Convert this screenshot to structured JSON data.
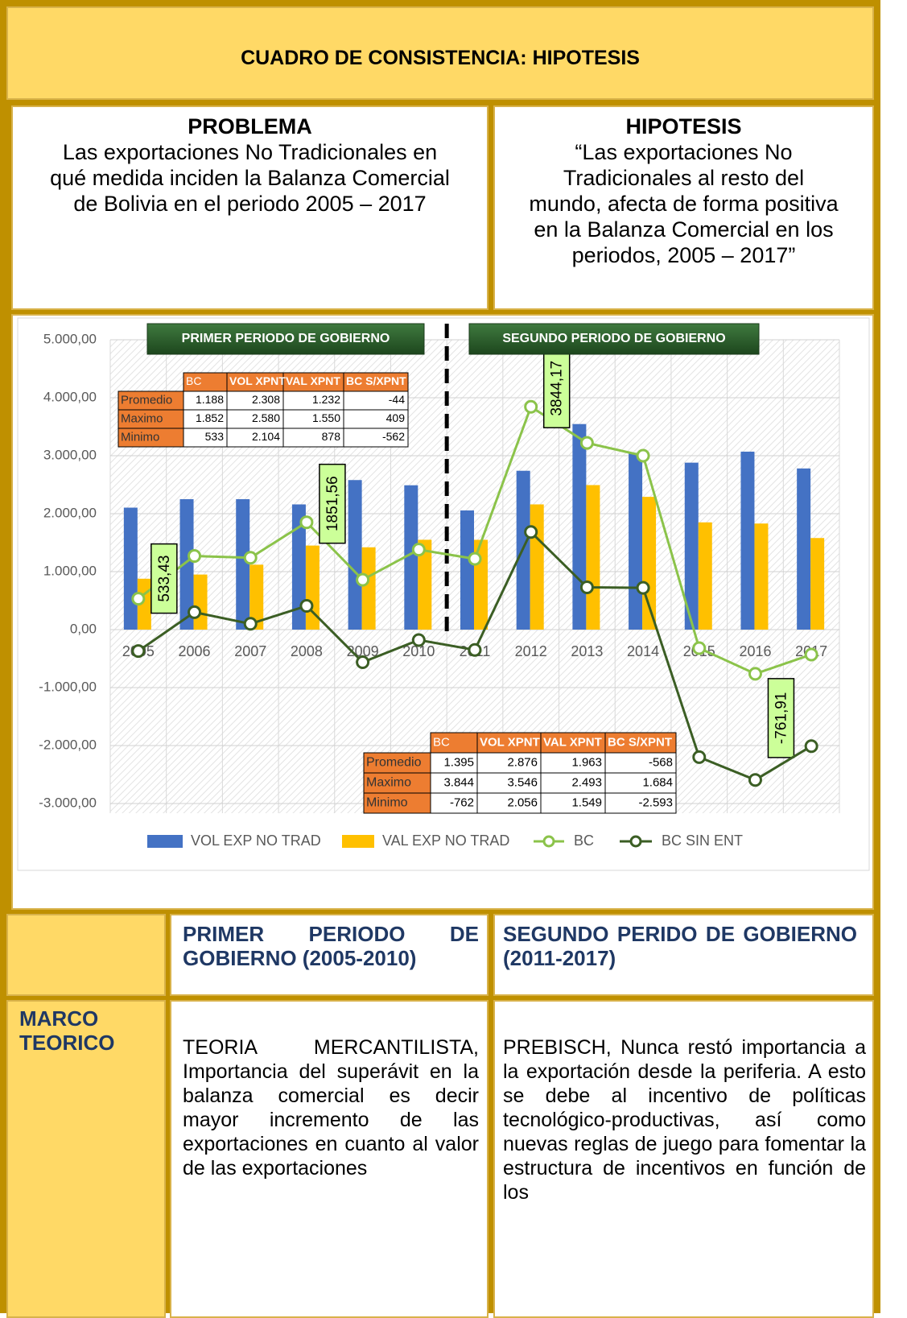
{
  "title": "CUADRO DE CONSISTENCIA: HIPOTESIS",
  "problem": {
    "heading": "PROBLEMA",
    "text": "Las exportaciones No Tradicionales en qué medida inciden la Balanza Comercial de Bolivia en el periodo 2005 – 2017"
  },
  "hypothesis": {
    "heading": "HIPOTESIS",
    "text": "“Las exportaciones No Tradicionales al resto del mundo, afecta de forma positiva en la Balanza Comercial en los periodos, 2005 – 2017”"
  },
  "chart_data": {
    "type": "bar_line",
    "categories": [
      "2005",
      "2006",
      "2007",
      "2008",
      "2009",
      "2010",
      "2011",
      "2012",
      "2013",
      "2014",
      "2015",
      "2016",
      "2017"
    ],
    "series": [
      {
        "name": "VOL EXP NO TRAD",
        "kind": "bar",
        "color": "#4472c4",
        "values": [
          2104,
          2250,
          2250,
          2160,
          2580,
          2490,
          2056,
          2740,
          3546,
          3050,
          2880,
          3070,
          2780
        ]
      },
      {
        "name": "VAL EXP NO TRAD",
        "kind": "bar",
        "color": "#ffc000",
        "values": [
          878,
          950,
          1120,
          1450,
          1420,
          1550,
          1549,
          2160,
          2493,
          2290,
          1850,
          1830,
          1580
        ]
      },
      {
        "name": "BC",
        "kind": "line",
        "color": "#8bc34a",
        "values": [
          533.43,
          1270,
          1240,
          1851.56,
          860,
          1380,
          1220,
          3844.17,
          3220,
          3000,
          -320,
          -761.91,
          -430
        ],
        "value_labels": [
          "533,43",
          null,
          null,
          "1851,56",
          null,
          null,
          null,
          "3844,17",
          null,
          null,
          null,
          "-761,91",
          null
        ]
      },
      {
        "name": "BC SIN ENT",
        "kind": "line",
        "color": "#3b5e24",
        "values": [
          -370,
          300,
          100,
          409,
          -562,
          -180,
          -350,
          1684,
          730,
          720,
          -2200,
          -2593,
          -2010
        ]
      }
    ],
    "ylim": [
      -3000,
      5000
    ],
    "yticks": [
      {
        "value": 5000,
        "label": "5.000,00"
      },
      {
        "value": 4000,
        "label": "4.000,00"
      },
      {
        "value": 3000,
        "label": "3.000,00"
      },
      {
        "value": 2000,
        "label": "2.000,00"
      },
      {
        "value": 1000,
        "label": "1.000,00"
      },
      {
        "value": 0,
        "label": "0,00"
      },
      {
        "value": -1000,
        "label": "-1.000,00"
      },
      {
        "value": -2000,
        "label": "-2.000,00"
      },
      {
        "value": -3000,
        "label": "-3.000,00"
      }
    ],
    "grid": true,
    "annotations": [
      "PRIMER PERIODO DE GOBIERNO",
      "SEGUNDO PERIODO DE GOBIERNO"
    ],
    "tables": [
      {
        "columns": [
          "BC",
          "VOL XPNT",
          "VAL XPNT",
          "BC S/XPNT"
        ],
        "rows": [
          {
            "label": "Promedio",
            "values": [
              "1.188",
              "2.308",
              "1.232",
              "-44"
            ]
          },
          {
            "label": "Maximo",
            "values": [
              "1.852",
              "2.580",
              "1.550",
              "409"
            ]
          },
          {
            "label": "Minimo",
            "values": [
              "533",
              "2.104",
              "878",
              "-562"
            ]
          }
        ]
      },
      {
        "columns": [
          "BC",
          "VOL XPNT",
          "VAL XPNT",
          "BC S/XPNT"
        ],
        "rows": [
          {
            "label": "Promedio",
            "values": [
              "1.395",
              "2.876",
              "1.963",
              "-568"
            ]
          },
          {
            "label": "Maximo",
            "values": [
              "3.844",
              "3.546",
              "2.493",
              "1.684"
            ]
          },
          {
            "label": "Minimo",
            "values": [
              "-762",
              "2.056",
              "1.549",
              "-2.593"
            ]
          }
        ]
      }
    ]
  },
  "table": {
    "header": [
      "PRIMER PERIODO DE GOBIERNO (2005-2010)",
      "SEGUNDO PERIDO DE GOBIERNO (2011-2017)"
    ],
    "rows": [
      [
        "MARCO TEORICO",
        "TEORIA MERCANTILISTA, Importancia del superávit en la balanza comercial es decir mayor incremento de las exportaciones en cuanto al valor de las exportaciones",
        "PREBISCH, Nunca restó importancia a la exportación desde la periferia. A esto se debe al incentivo de políticas tecnológico-productivas, así como nuevas reglas de juego para fomentar la estructura de incentivos en función de los"
      ]
    ]
  }
}
